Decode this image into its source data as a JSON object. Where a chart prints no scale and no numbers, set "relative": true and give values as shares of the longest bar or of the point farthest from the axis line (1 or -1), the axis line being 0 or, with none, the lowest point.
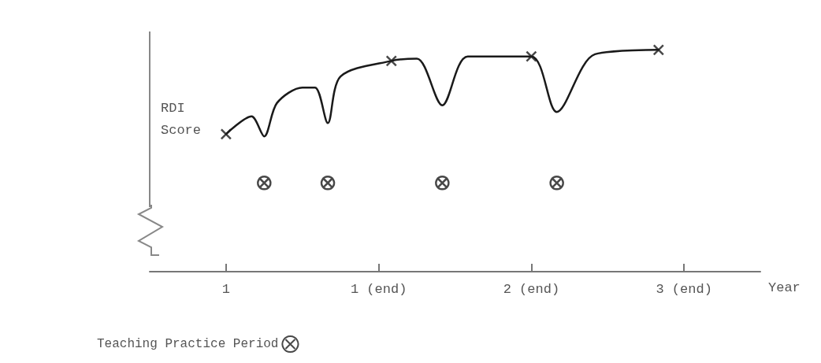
{
  "chart_data": {
    "type": "line",
    "relative": true,
    "ylabel": "RDI\nScore",
    "xlabel": "Year",
    "categories": [
      null,
      null,
      null,
      null,
      null,
      null,
      "1",
      null,
      null,
      null,
      null,
      null,
      null,
      null,
      null,
      null,
      null,
      null,
      "1 (end)",
      null,
      null,
      null,
      null,
      null,
      null,
      null,
      null,
      null,
      null,
      null,
      "2 (end)",
      null,
      null,
      null,
      null,
      null,
      null,
      null,
      null,
      null,
      null,
      null,
      "3 (end)",
      null,
      null,
      null,
      null,
      null,
      null
    ],
    "legend": "bottom left",
    "grid": false,
    "series": [
      {
        "color": "#1a1a1a",
        "marker": "none",
        "values": [
          null,
          null,
          null,
          null,
          null,
          null,
          0.62,
          null,
          0.7,
          0.61,
          0.76,
          null,
          0.83,
          0.83,
          0.67,
          0.88,
          null,
          null,
          null,
          0.95,
          null,
          0.96,
          null,
          0.75,
          null,
          0.97,
          null,
          null,
          null,
          null,
          0.97,
          null,
          0.72,
          null,
          null,
          0.98,
          null,
          null,
          null,
          null,
          1.0,
          null,
          null,
          null,
          null,
          null,
          null,
          null,
          null
        ]
      },
      {
        "type": "scatter",
        "color": "#1a1a1a",
        "marker": "cross",
        "values": [
          null,
          null,
          null,
          null,
          null,
          null,
          0.62,
          null,
          null,
          null,
          null,
          null,
          null,
          null,
          null,
          null,
          null,
          null,
          null,
          0.95,
          null,
          null,
          null,
          null,
          null,
          null,
          null,
          null,
          null,
          null,
          0.97,
          null,
          null,
          null,
          null,
          null,
          null,
          null,
          null,
          null,
          1.0,
          null,
          null,
          null,
          null,
          null,
          null,
          null,
          null
        ]
      },
      {
        "type": "scatter",
        "name": "Teaching Practice Period",
        "color": "#1a1a1a",
        "marker": "cross",
        "values": [
          null,
          null,
          null,
          null,
          null,
          null,
          null,
          null,
          null,
          0.4,
          null,
          null,
          null,
          null,
          0.4,
          null,
          null,
          null,
          null,
          null,
          null,
          null,
          null,
          0.4,
          null,
          null,
          null,
          null,
          null,
          null,
          null,
          null,
          0.4,
          null,
          null,
          null,
          null,
          null,
          null,
          null,
          null,
          null,
          null,
          null,
          null,
          null,
          null,
          null,
          null
        ]
      }
    ]
  }
}
